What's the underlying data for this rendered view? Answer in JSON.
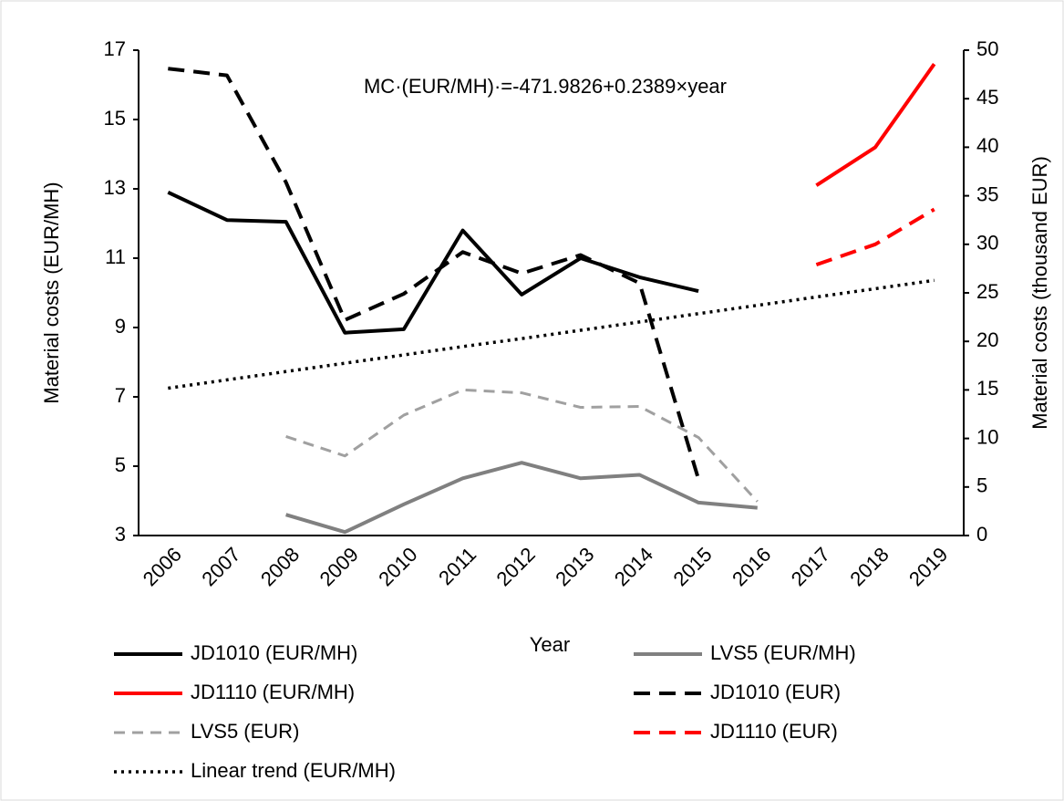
{
  "chart_data": {
    "type": "line",
    "annotation": "MC·(EUR/MH)·=-471.9826+0.2389×year",
    "x_label": "Year",
    "y_label": "Material costs (EUR/MH)",
    "y2_label": "Material costs (thousand EUR)",
    "categories": [
      "2006",
      "2007",
      "2008",
      "2009",
      "2010",
      "2011",
      "2012",
      "2013",
      "2014",
      "2015",
      "2016",
      "2017",
      "2018",
      "2019"
    ],
    "ylim": [
      3,
      17
    ],
    "yticks": [
      3,
      5,
      7,
      9,
      11,
      13,
      15,
      17
    ],
    "y2lim": [
      0,
      50
    ],
    "y2ticks": [
      0,
      5,
      10,
      15,
      20,
      25,
      30,
      35,
      40,
      45,
      50
    ],
    "legend": "bottom",
    "series": [
      {
        "name": "JD1010 (EUR/MH)",
        "color": "#000000",
        "style": "solid",
        "values": [
          12.9,
          12.1,
          12.05,
          8.85,
          8.95,
          11.8,
          9.95,
          11.0,
          10.45,
          10.05,
          null,
          null,
          null,
          null
        ]
      },
      {
        "name": "LVS5 (EUR/MH)",
        "color": "#808080",
        "style": "solid",
        "values": [
          null,
          null,
          3.6,
          3.1,
          3.9,
          4.65,
          5.1,
          4.65,
          4.75,
          3.95,
          3.8,
          null,
          null,
          null
        ]
      },
      {
        "name": "JD1110 (EUR/MH)",
        "color": "#ff0000",
        "style": "solid",
        "values": [
          null,
          null,
          null,
          null,
          null,
          null,
          null,
          null,
          null,
          null,
          null,
          13.1,
          14.2,
          16.6
        ]
      },
      {
        "name": "JD1010 (EUR)",
        "color": "#000000",
        "style": "dashed",
        "axis": "y2",
        "values": [
          48.1,
          47.4,
          36.4,
          22.2,
          24.9,
          29.2,
          27.0,
          28.9,
          26.0,
          5.8,
          null,
          null,
          null,
          null
        ]
      },
      {
        "name": "LVS5 (EUR)",
        "color": "#a0a0a0",
        "style": "dashed-thin",
        "axis": "y2",
        "values": [
          null,
          null,
          10.2,
          8.2,
          12.4,
          15.0,
          14.7,
          13.2,
          13.3,
          10.1,
          3.5,
          null,
          null,
          null
        ]
      },
      {
        "name": "JD1110 (EUR)",
        "color": "#ff0000",
        "style": "dashed",
        "axis": "y2",
        "values": [
          null,
          null,
          null,
          null,
          null,
          null,
          null,
          null,
          null,
          null,
          null,
          27.9,
          30.0,
          33.6
        ]
      },
      {
        "name": "Linear trend (EUR/MH)",
        "color": "#000000",
        "style": "dotted",
        "values": [
          7.25,
          7.49,
          7.73,
          7.97,
          8.21,
          8.45,
          8.68,
          8.92,
          9.16,
          9.4,
          9.64,
          9.88,
          10.12,
          10.36
        ]
      }
    ]
  }
}
